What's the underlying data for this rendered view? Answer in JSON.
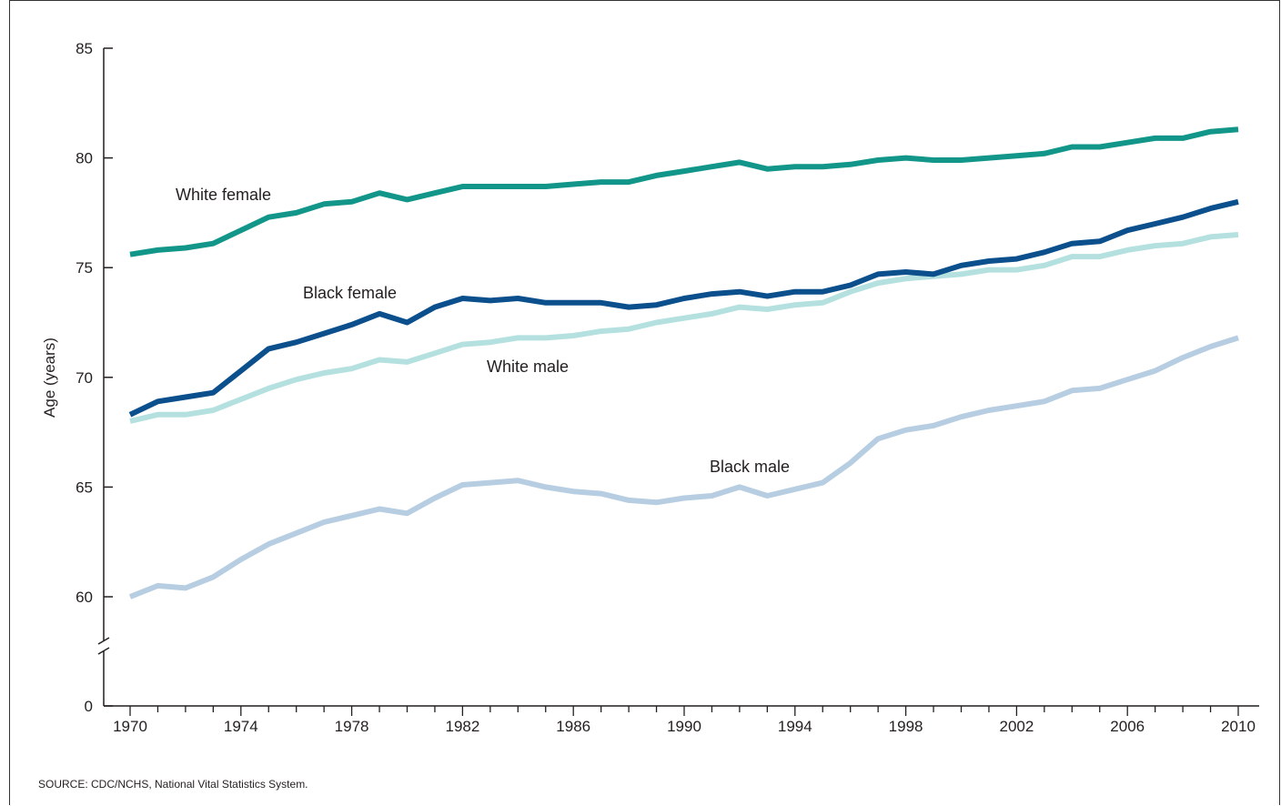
{
  "chart_data": {
    "type": "line",
    "title": "",
    "xlabel": "",
    "ylabel": "Age (years)",
    "xlim": [
      1970,
      2010
    ],
    "ylim": [
      55,
      85
    ],
    "y_axis_break": true,
    "x_ticks": [
      "1970",
      "1974",
      "1978",
      "1982",
      "1986",
      "1990",
      "1994",
      "1998",
      "2002",
      "2006",
      "2010"
    ],
    "y_ticks": [
      "0",
      "60",
      "65",
      "70",
      "75",
      "80",
      "85"
    ],
    "grid": false,
    "x": [
      1970,
      1971,
      1972,
      1973,
      1974,
      1975,
      1976,
      1977,
      1978,
      1979,
      1980,
      1981,
      1982,
      1983,
      1984,
      1985,
      1986,
      1987,
      1988,
      1989,
      1990,
      1991,
      1992,
      1993,
      1994,
      1995,
      1996,
      1997,
      1998,
      1999,
      2000,
      2001,
      2002,
      2003,
      2004,
      2005,
      2006,
      2007,
      2008,
      2009,
      2010
    ],
    "series": [
      {
        "name": "White female",
        "color": "#12968a",
        "values": [
          75.6,
          75.8,
          75.9,
          76.1,
          76.7,
          77.3,
          77.5,
          77.9,
          78.0,
          78.4,
          78.1,
          78.4,
          78.7,
          78.7,
          78.7,
          78.7,
          78.8,
          78.9,
          78.9,
          79.2,
          79.4,
          79.6,
          79.8,
          79.5,
          79.6,
          79.6,
          79.7,
          79.9,
          80.0,
          79.9,
          79.9,
          80.0,
          80.1,
          80.2,
          80.5,
          80.5,
          80.7,
          80.9,
          80.9,
          81.2,
          81.3
        ]
      },
      {
        "name": "Black female",
        "color": "#0b4f8c",
        "values": [
          68.3,
          68.9,
          69.1,
          69.3,
          70.3,
          71.3,
          71.6,
          72.0,
          72.4,
          72.9,
          72.5,
          73.2,
          73.6,
          73.5,
          73.6,
          73.4,
          73.4,
          73.4,
          73.2,
          73.3,
          73.6,
          73.8,
          73.9,
          73.7,
          73.9,
          73.9,
          74.2,
          74.7,
          74.8,
          74.7,
          75.1,
          75.3,
          75.4,
          75.7,
          76.1,
          76.2,
          76.7,
          77.0,
          77.3,
          77.7,
          78.0
        ]
      },
      {
        "name": "White male",
        "color": "#b4e1df",
        "values": [
          68.0,
          68.3,
          68.3,
          68.5,
          69.0,
          69.5,
          69.9,
          70.2,
          70.4,
          70.8,
          70.7,
          71.1,
          71.5,
          71.6,
          71.8,
          71.8,
          71.9,
          72.1,
          72.2,
          72.5,
          72.7,
          72.9,
          73.2,
          73.1,
          73.3,
          73.4,
          73.9,
          74.3,
          74.5,
          74.6,
          74.7,
          74.9,
          74.9,
          75.1,
          75.5,
          75.5,
          75.8,
          76.0,
          76.1,
          76.4,
          76.5
        ]
      },
      {
        "name": "Black male",
        "color": "#b7cee2",
        "values": [
          60.0,
          60.5,
          60.4,
          60.9,
          61.7,
          62.4,
          62.9,
          63.4,
          63.7,
          64.0,
          63.8,
          64.5,
          65.1,
          65.2,
          65.3,
          65.0,
          64.8,
          64.7,
          64.4,
          64.3,
          64.5,
          64.6,
          65.0,
          64.6,
          64.9,
          65.2,
          66.1,
          67.2,
          67.6,
          67.8,
          68.2,
          68.5,
          68.7,
          68.9,
          69.4,
          69.5,
          69.9,
          70.3,
          70.9,
          71.4,
          71.8
        ]
      }
    ],
    "series_labels": [
      "White female",
      "Black female",
      "White male",
      "Black male"
    ]
  },
  "source_note": "SOURCE: CDC/NCHS, National Vital Statistics System."
}
